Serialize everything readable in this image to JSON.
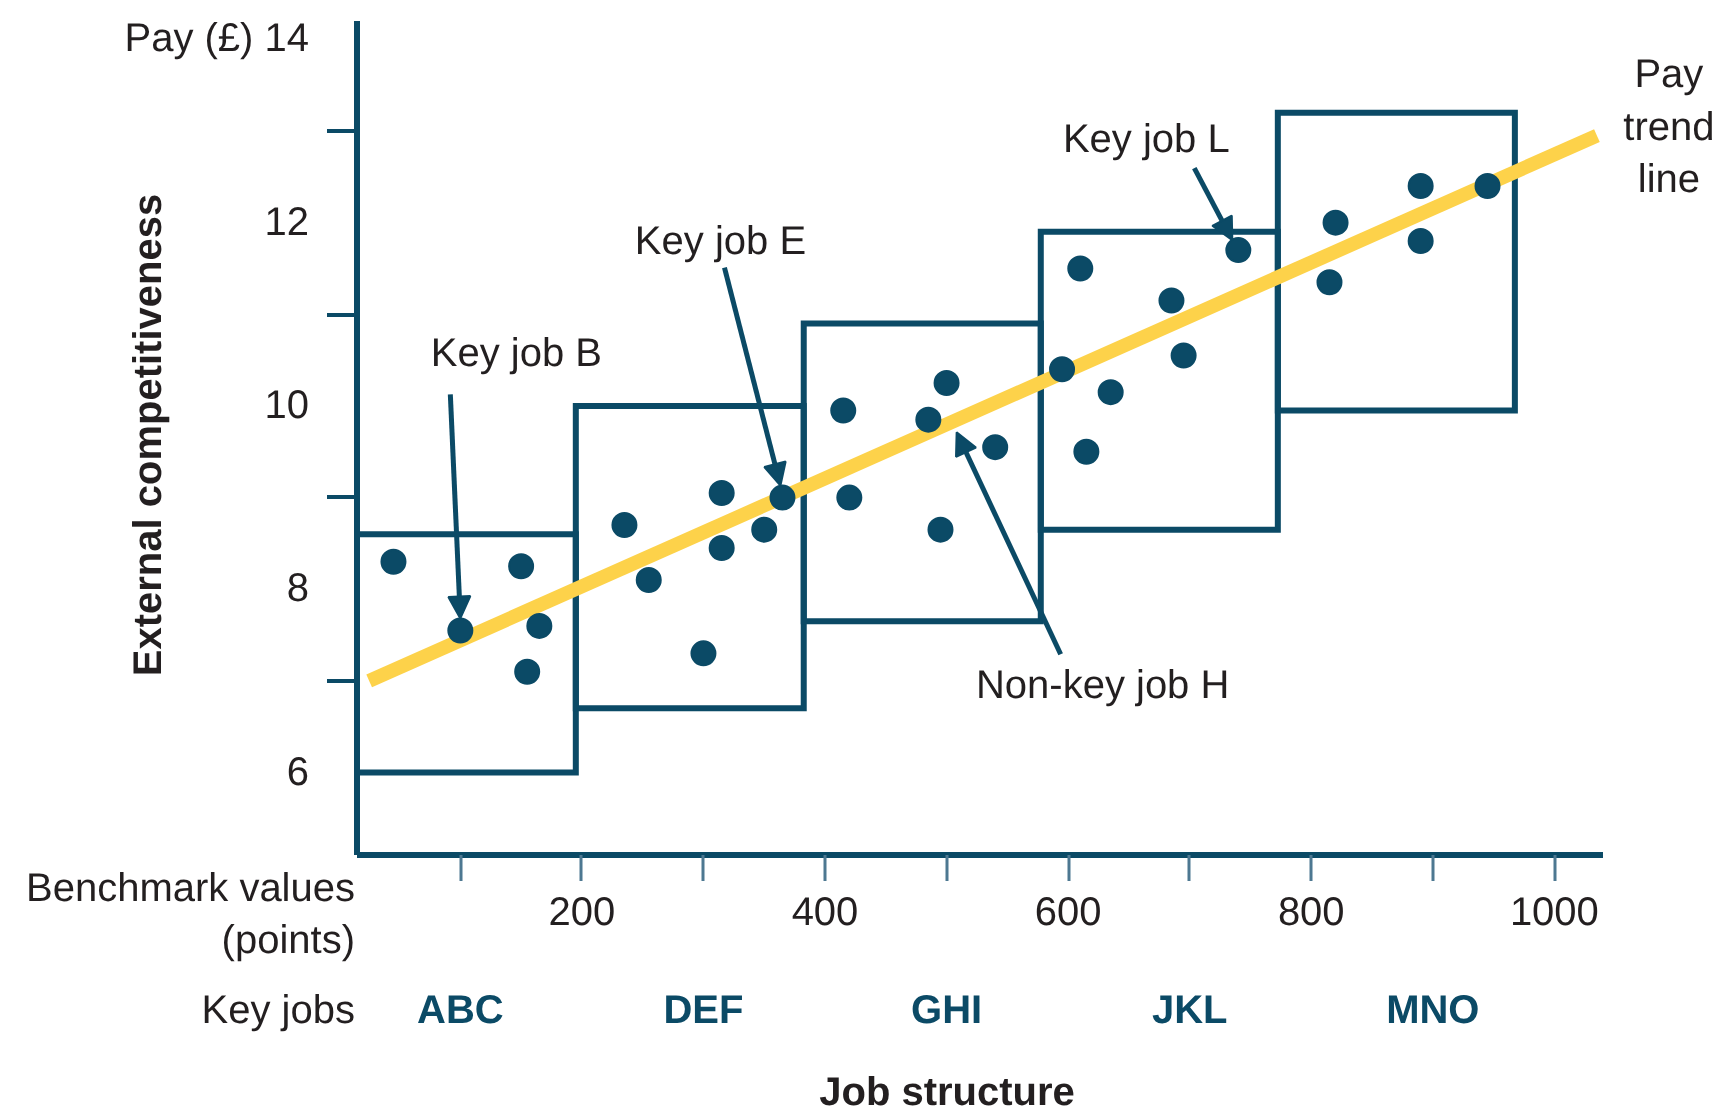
{
  "chart_data": {
    "type": "scatter",
    "xlabel": "Job structure",
    "ylabel": "External competitiveness",
    "xlim": [
      15,
      1040
    ],
    "xticks": [
      {
        "value": 100,
        "label": null
      },
      200,
      {
        "value": 300,
        "label": null
      },
      400,
      {
        "value": 500,
        "label": null
      },
      600,
      {
        "value": 700,
        "label": null
      },
      800,
      {
        "value": 900,
        "label": null
      },
      1000
    ],
    "ylim": [
      5.1,
      14.2
    ],
    "yticks": [
      6,
      {
        "value": 7,
        "label": null
      },
      8,
      {
        "value": 9,
        "label": null
      },
      10,
      {
        "value": 11,
        "label": null
      },
      12,
      {
        "value": 13,
        "label": null
      },
      {
        "value": 14,
        "label": "Pay (£) 14"
      }
    ],
    "series": [
      {
        "type": "bar",
        "color": "#0b4a66",
        "x": [
          105,
          285,
          480,
          675,
          870
        ],
        "base": [
          6.0,
          6.7,
          7.65,
          8.65,
          9.95
        ],
        "values": [
          2.6,
          3.3,
          3.25,
          3.25,
          3.25
        ]
      },
      {
        "type": "line",
        "color": "#fdd24a",
        "x": [
          25,
          1035
        ],
        "values": [
          7.0,
          12.95
        ]
      },
      {
        "color": "#0b4a66",
        "marker": "circle",
        "x": [
          45,
          100,
          150,
          165,
          155,
          235,
          255,
          300,
          315,
          315,
          350,
          365,
          415,
          420,
          485,
          500,
          495,
          540,
          595,
          610,
          635,
          615,
          685,
          695,
          740,
          820,
          815,
          890,
          890,
          945
        ],
        "values": [
          8.3,
          7.55,
          8.25,
          7.6,
          7.1,
          8.7,
          8.1,
          7.3,
          9.05,
          8.45,
          8.65,
          9.0,
          9.95,
          9.0,
          9.85,
          10.25,
          8.65,
          9.55,
          10.4,
          11.5,
          10.15,
          9.5,
          11.15,
          10.55,
          11.7,
          12.0,
          11.35,
          12.4,
          11.8,
          12.4
        ]
      }
    ],
    "annotations": [
      {
        "text": "Key job B",
        "x": 100,
        "y": 7.55
      },
      {
        "text": "Key job E",
        "x": 365,
        "y": 9.0
      },
      {
        "text": "Key job L",
        "x": 740,
        "y": 11.7
      },
      {
        "text": "Non-key job H",
        "x": 505,
        "y": 9.8
      },
      {
        "text": "Pay\ntrend\nline",
        "x": 1035,
        "y": 12.95
      },
      "Benchmark values\n(points)",
      "Key jobs",
      "ABC",
      "DEF",
      "GHI",
      "JKL",
      "MNO"
    ]
  }
}
